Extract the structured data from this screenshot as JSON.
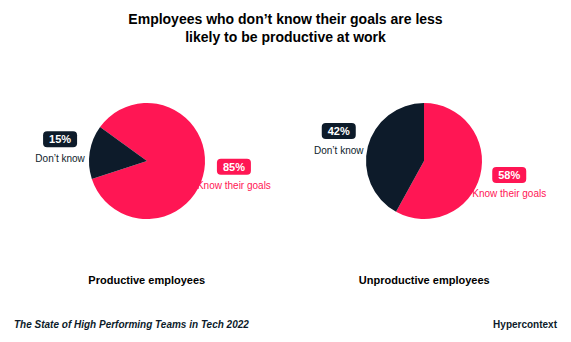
{
  "title": "Employees who don’t know their goals are less\nlikely to be productive at work",
  "annotations": [
    "The State of High Performing Teams in Tech 2022",
    "Hypercontext"
  ],
  "chart_data": [
    {
      "type": "pie",
      "subtitle": "Productive employees",
      "categories": [
        "Know their goals",
        "Don’t know"
      ],
      "values": [
        85,
        15
      ],
      "value_labels": [
        "85%",
        "15%"
      ],
      "colors": [
        "#FF1654",
        "#0D1B2A"
      ],
      "data_labels": true
    },
    {
      "type": "pie",
      "subtitle": "Unproductive employees",
      "categories": [
        "Know their goals",
        "Don’t know"
      ],
      "values": [
        58,
        42
      ],
      "value_labels": [
        "58%",
        "42%"
      ],
      "colors": [
        "#FF1654",
        "#0D1B2A"
      ],
      "data_labels": true
    }
  ]
}
